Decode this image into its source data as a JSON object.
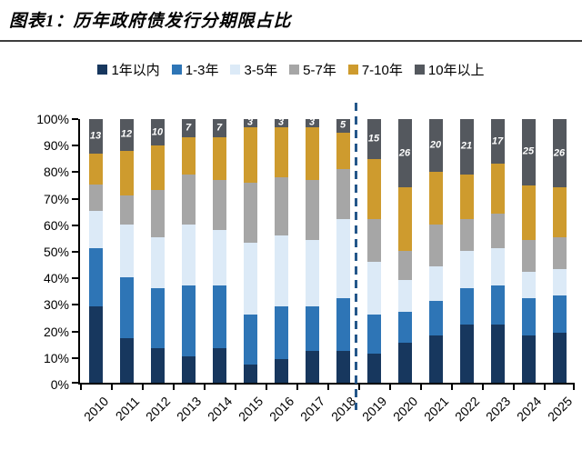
{
  "header": {
    "title": "图表1：历年政府债发行分期限占比"
  },
  "chart_data": {
    "type": "bar",
    "stacked": true,
    "percent_stacked": true,
    "title": "历年政府债发行分期限占比",
    "categories": [
      "2010",
      "2011",
      "2012",
      "2013",
      "2014",
      "2015",
      "2016",
      "2017",
      "2018",
      "2019",
      "2020",
      "2021",
      "2022",
      "2023",
      "2024",
      "2025"
    ],
    "series": [
      {
        "name": "1年以内",
        "color": "#17375E",
        "values": [
          29,
          17,
          13,
          10,
          13,
          7,
          9,
          12,
          12,
          11,
          15,
          18,
          22,
          22,
          18,
          19
        ]
      },
      {
        "name": "1-3年",
        "color": "#2E75B6",
        "values": [
          22,
          23,
          23,
          27,
          24,
          19,
          20,
          17,
          20,
          15,
          12,
          13,
          14,
          15,
          14,
          14
        ]
      },
      {
        "name": "3-5年",
        "color": "#DCEAF7",
        "values": [
          14,
          20,
          19,
          23,
          21,
          27,
          27,
          25,
          30,
          20,
          12,
          13,
          14,
          14,
          10,
          10
        ]
      },
      {
        "name": "5-7年",
        "color": "#A6A6A6",
        "values": [
          10,
          11,
          18,
          19,
          19,
          23,
          22,
          23,
          19,
          16,
          11,
          16,
          12,
          13,
          12,
          12
        ]
      },
      {
        "name": "7-10年",
        "color": "#CE9B2E",
        "values": [
          12,
          17,
          17,
          14,
          16,
          21,
          19,
          20,
          14,
          23,
          24,
          20,
          17,
          19,
          21,
          19
        ]
      },
      {
        "name": "10年以上",
        "color": "#54585E",
        "values": [
          13,
          12,
          10,
          7,
          7,
          3,
          3,
          3,
          5,
          15,
          26,
          20,
          21,
          17,
          25,
          26
        ]
      }
    ],
    "top_labels": [
      "13",
      "12",
      "10",
      "7",
      "7",
      "3",
      "3",
      "3",
      "5",
      "15",
      "26",
      "20",
      "21",
      "17",
      "25",
      "26"
    ],
    "top_labels_series": "10年以上",
    "y_ticks": [
      "100%",
      "90%",
      "80%",
      "70%",
      "60%",
      "50%",
      "40%",
      "30%",
      "20%",
      "10%",
      "0%"
    ],
    "ylim": [
      0,
      100
    ],
    "grid": false,
    "legend_position": "top",
    "divider": {
      "between": [
        "2018",
        "2019"
      ],
      "style": "dashed",
      "color": "#25578A"
    }
  }
}
